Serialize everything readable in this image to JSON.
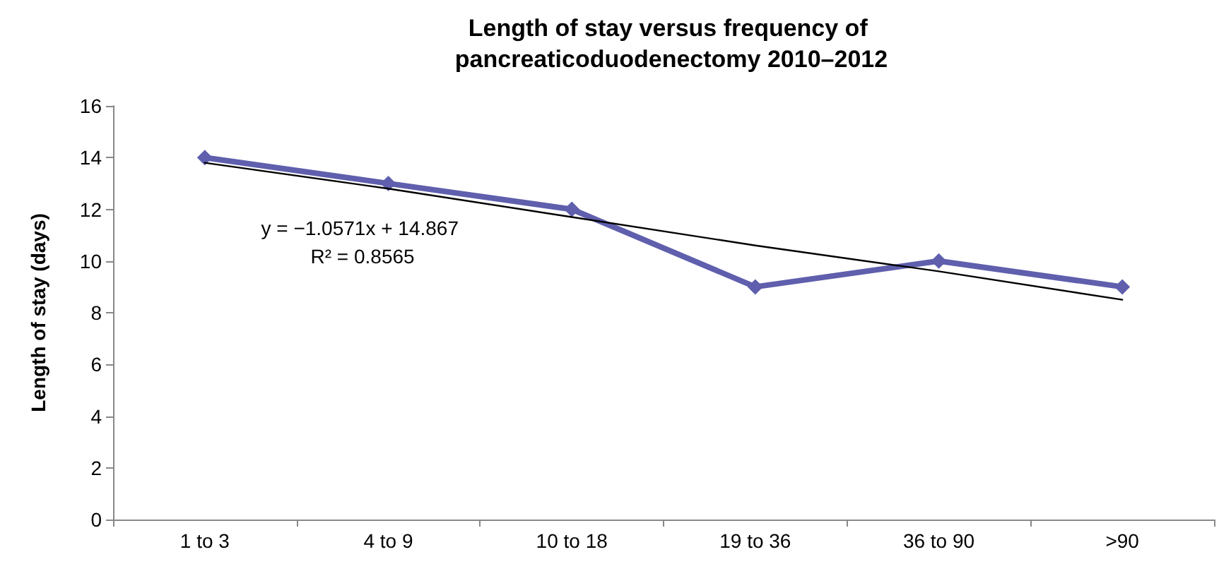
{
  "chart_data": {
    "type": "line",
    "title": "Length of stay versus frequency of pancreaticoduodenectomy 2010–2012",
    "ylabel": "Length of stay (days)",
    "categories": [
      "1 to 3",
      "4 to 9",
      "10 to 18",
      "19 to 36",
      "36 to 90",
      ">90"
    ],
    "series": [
      {
        "color": "#5f5fad",
        "values": [
          14,
          13,
          12,
          9,
          10,
          9
        ],
        "marker": "diamond"
      },
      {
        "type": "line",
        "color": "#000000",
        "x": [
          "1 to 3",
          "4 to 9",
          "10 to 18",
          "19 to 36",
          "36 to 90",
          ">90"
        ],
        "values": [
          13.8,
          12.8,
          11.7,
          10.6,
          9.6,
          8.5
        ],
        "marker": "none"
      }
    ],
    "annotations": [
      "y = −1.0571x + 14.867",
      "R² = 0.8565"
    ],
    "ylim": [
      0,
      16
    ],
    "yticks": [
      0,
      2,
      4,
      6,
      8,
      10,
      12,
      14,
      16
    ],
    "grid": false,
    "line_style": "solid"
  }
}
